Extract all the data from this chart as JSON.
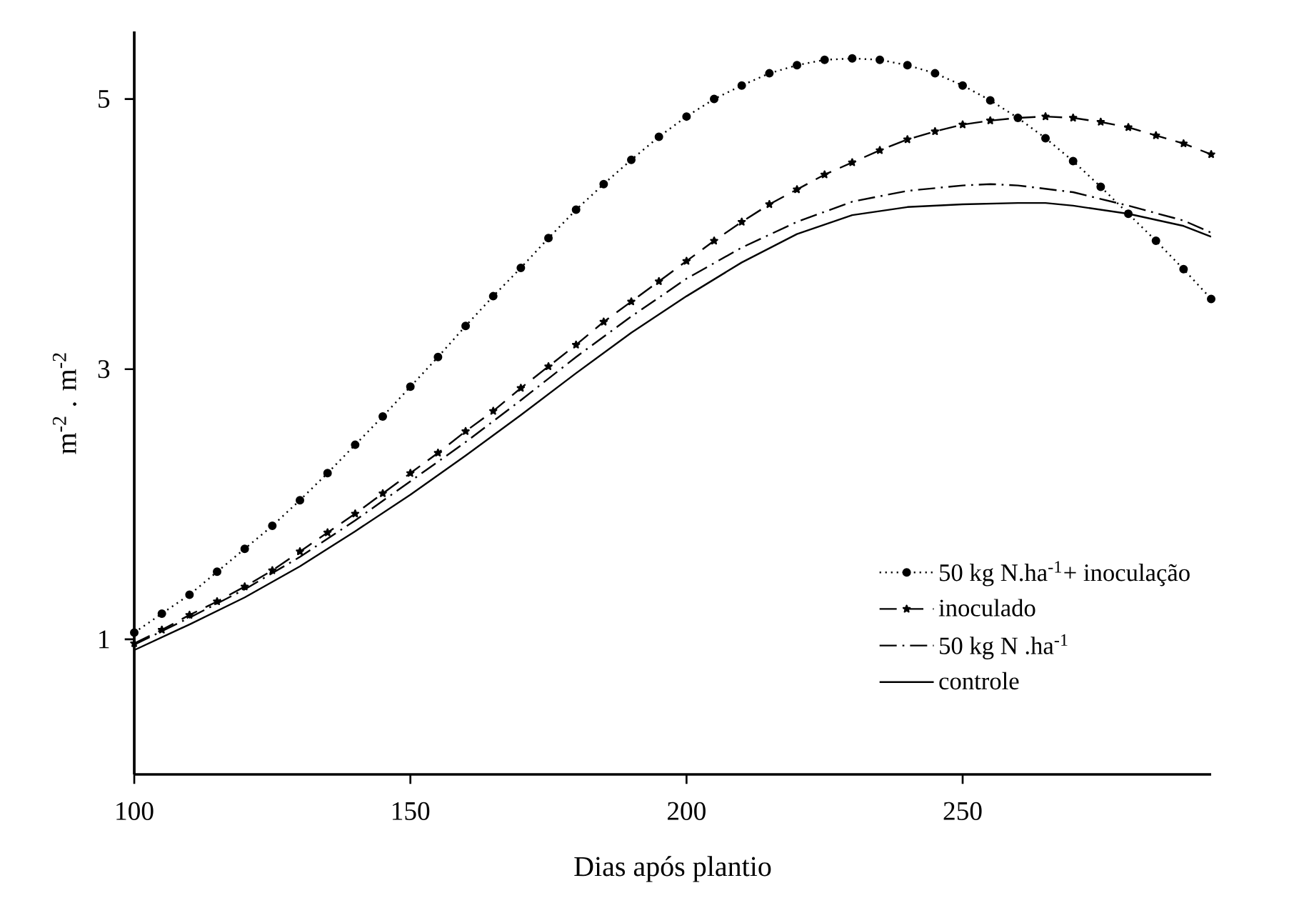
{
  "chart_data": {
    "type": "line",
    "xlabel": "Dias após plantio",
    "ylabel": "m$^{-2}$ . m$^{-2}$",
    "xlim": [
      100,
      295
    ],
    "ylim": [
      0,
      5.5
    ],
    "xticks": [
      100,
      150,
      200,
      250
    ],
    "yticks": [
      1,
      3,
      5
    ],
    "grid": false,
    "legend": "right",
    "series": [
      {
        "name": "50 kg N.ha$^{-1}$+ inoculação",
        "color": "#000000",
        "marker": "circle",
        "line_style": "dotted",
        "x": [
          100,
          105,
          110,
          115,
          120,
          125,
          130,
          135,
          140,
          145,
          150,
          155,
          160,
          165,
          170,
          175,
          180,
          185,
          190,
          195,
          200,
          205,
          210,
          215,
          220,
          225,
          230,
          235,
          240,
          245,
          250,
          255,
          260,
          265,
          270,
          275,
          280,
          285,
          290,
          295
        ],
        "values": [
          1.05,
          1.19,
          1.33,
          1.5,
          1.67,
          1.84,
          2.03,
          2.23,
          2.44,
          2.65,
          2.87,
          3.09,
          3.32,
          3.54,
          3.75,
          3.97,
          4.18,
          4.37,
          4.55,
          4.72,
          4.87,
          5.0,
          5.1,
          5.19,
          5.25,
          5.29,
          5.3,
          5.29,
          5.25,
          5.19,
          5.1,
          4.99,
          4.86,
          4.71,
          4.54,
          4.35,
          4.15,
          3.95,
          3.74,
          3.52
        ]
      },
      {
        "name": "inoculado",
        "color": "#000000",
        "marker": "star",
        "line_style": "dashed",
        "x": [
          100,
          105,
          110,
          115,
          120,
          125,
          130,
          135,
          140,
          145,
          150,
          155,
          160,
          165,
          170,
          175,
          180,
          185,
          190,
          195,
          200,
          205,
          210,
          215,
          220,
          225,
          230,
          235,
          240,
          245,
          250,
          255,
          260,
          265,
          270,
          275,
          280,
          285,
          290,
          295
        ],
        "values": [
          0.97,
          1.07,
          1.18,
          1.28,
          1.39,
          1.51,
          1.65,
          1.79,
          1.93,
          2.08,
          2.23,
          2.38,
          2.54,
          2.69,
          2.86,
          3.02,
          3.18,
          3.35,
          3.5,
          3.65,
          3.8,
          3.95,
          4.09,
          4.22,
          4.33,
          4.44,
          4.53,
          4.62,
          4.7,
          4.76,
          4.81,
          4.84,
          4.86,
          4.87,
          4.86,
          4.83,
          4.79,
          4.73,
          4.67,
          4.59
        ]
      },
      {
        "name": "50 kg N .ha$^{-1}$",
        "color": "#000000",
        "marker": "none",
        "line_style": "dashdot",
        "x": [
          100,
          110,
          120,
          130,
          140,
          150,
          160,
          170,
          180,
          190,
          200,
          210,
          220,
          230,
          240,
          250,
          255,
          260,
          270,
          280,
          290,
          295
        ],
        "values": [
          0.96,
          1.16,
          1.37,
          1.61,
          1.88,
          2.17,
          2.46,
          2.77,
          3.09,
          3.39,
          3.67,
          3.9,
          4.09,
          4.24,
          4.32,
          4.36,
          4.37,
          4.36,
          4.31,
          4.21,
          4.1,
          4.01
        ]
      },
      {
        "name": "controle",
        "color": "#000000",
        "marker": "none",
        "line_style": "solid",
        "x": [
          100,
          110,
          120,
          130,
          140,
          150,
          160,
          170,
          180,
          190,
          200,
          210,
          220,
          230,
          240,
          250,
          260,
          265,
          270,
          280,
          290,
          295
        ],
        "values": [
          0.92,
          1.11,
          1.31,
          1.54,
          1.8,
          2.07,
          2.36,
          2.66,
          2.97,
          3.27,
          3.54,
          3.79,
          4.0,
          4.14,
          4.2,
          4.22,
          4.23,
          4.23,
          4.21,
          4.15,
          4.06,
          3.98
        ]
      }
    ]
  }
}
